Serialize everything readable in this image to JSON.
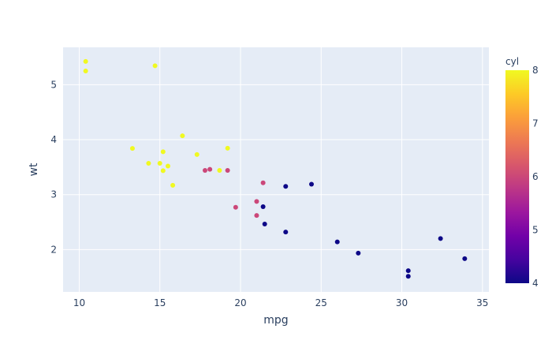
{
  "chart_data": {
    "type": "scatter",
    "title": "",
    "xlabel": "mpg",
    "ylabel": "wt",
    "xlim": [
      9.0,
      35.4
    ],
    "ylim": [
      1.23,
      5.68
    ],
    "x_ticks": [
      10,
      15,
      20,
      25,
      30,
      35
    ],
    "y_ticks": [
      2,
      3,
      4,
      5
    ],
    "grid": true,
    "plot_background": "#e5ecf6",
    "grid_color": "#ffffff",
    "marker_size": 3,
    "colorbar": {
      "title": "cyl",
      "range": [
        4,
        8
      ],
      "ticks": [
        4,
        5,
        6,
        7,
        8
      ],
      "colorscale": [
        "#0d0887",
        "#46039f",
        "#7201a8",
        "#9c179e",
        "#bd3786",
        "#d8576b",
        "#ed7953",
        "#fb9f3a",
        "#fdca26",
        "#f0f921"
      ]
    },
    "points": [
      {
        "x": 21.0,
        "y": 2.62,
        "c": 6
      },
      {
        "x": 21.0,
        "y": 2.875,
        "c": 6
      },
      {
        "x": 22.8,
        "y": 2.32,
        "c": 4
      },
      {
        "x": 21.4,
        "y": 3.215,
        "c": 6
      },
      {
        "x": 18.7,
        "y": 3.44,
        "c": 8
      },
      {
        "x": 18.1,
        "y": 3.46,
        "c": 6
      },
      {
        "x": 14.3,
        "y": 3.57,
        "c": 8
      },
      {
        "x": 24.4,
        "y": 3.19,
        "c": 4
      },
      {
        "x": 22.8,
        "y": 3.15,
        "c": 4
      },
      {
        "x": 19.2,
        "y": 3.44,
        "c": 6
      },
      {
        "x": 17.8,
        "y": 3.44,
        "c": 6
      },
      {
        "x": 16.4,
        "y": 4.07,
        "c": 8
      },
      {
        "x": 17.3,
        "y": 3.73,
        "c": 8
      },
      {
        "x": 15.2,
        "y": 3.78,
        "c": 8
      },
      {
        "x": 10.4,
        "y": 5.25,
        "c": 8
      },
      {
        "x": 10.4,
        "y": 5.424,
        "c": 8
      },
      {
        "x": 14.7,
        "y": 5.345,
        "c": 8
      },
      {
        "x": 32.4,
        "y": 2.2,
        "c": 4
      },
      {
        "x": 30.4,
        "y": 1.615,
        "c": 4
      },
      {
        "x": 33.9,
        "y": 1.835,
        "c": 4
      },
      {
        "x": 21.5,
        "y": 2.465,
        "c": 4
      },
      {
        "x": 15.5,
        "y": 3.52,
        "c": 8
      },
      {
        "x": 15.2,
        "y": 3.435,
        "c": 8
      },
      {
        "x": 13.3,
        "y": 3.84,
        "c": 8
      },
      {
        "x": 19.2,
        "y": 3.845,
        "c": 8
      },
      {
        "x": 27.3,
        "y": 1.935,
        "c": 4
      },
      {
        "x": 26.0,
        "y": 2.14,
        "c": 4
      },
      {
        "x": 30.4,
        "y": 1.513,
        "c": 4
      },
      {
        "x": 15.8,
        "y": 3.17,
        "c": 8
      },
      {
        "x": 19.7,
        "y": 2.77,
        "c": 6
      },
      {
        "x": 15.0,
        "y": 3.57,
        "c": 8
      },
      {
        "x": 21.4,
        "y": 2.78,
        "c": 4
      }
    ]
  }
}
